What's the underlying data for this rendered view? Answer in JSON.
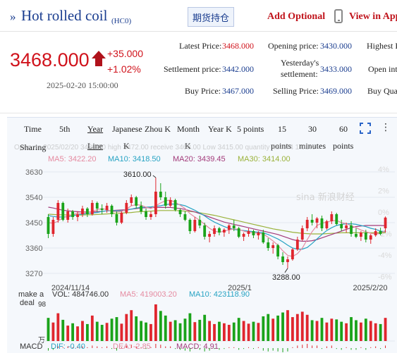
{
  "header": {
    "title_prefix": "»",
    "title": "Hot rolled coil",
    "code": "(HC0)",
    "futures_button": "期货持仓",
    "add_optional": "Add Optional",
    "view_app": "View in App"
  },
  "quote": {
    "price": "3468.000",
    "change": "+35.000",
    "change_pct": "+1.02%",
    "datetime": "2025-02-20 15:00:00",
    "fields": {
      "latest_price_label": "Latest Price:",
      "latest_price": "3468.000",
      "opening_price_label": "Opening price:",
      "opening_price": "3430.000",
      "highest_label": "Highest P",
      "settlement_label": "Settlement price:",
      "settlement": "3442.000",
      "yesterday_label_1": "Yesterday's",
      "yesterday_label_2": "settlement:",
      "yesterday": "3433.000",
      "open_interest_label": "Open inte",
      "buy_price_label": "Buy Price:",
      "buy_price": "3467.000",
      "selling_price_label": "Selling Price:",
      "selling_price": "3469.000",
      "buy_qty_label": "Buy Qua"
    }
  },
  "chart_tabs": {
    "time": "Time",
    "fifth": "5th",
    "year": "Year",
    "year_line": "Line",
    "japanese": "Japanese",
    "k_small": "K",
    "zhou_k": "Zhou K",
    "month": "Month",
    "month_k": "K",
    "year_k": "Year K",
    "five_points": "5 points",
    "fifteen": "15",
    "thirty": "30",
    "sixty": "60",
    "points": "points",
    "minutes": "minutes",
    "points2": "points"
  },
  "chart_info": {
    "sharing": "Sharing",
    "summary": "Open on 2025/02/20  3430.00  high 3472.00  receive 3468.00  Low 3415.00  quantity 484.74  1.01%",
    "ma5": "MA5: 3422.20",
    "ma10": "MA10: 3418.50",
    "ma20": "MA20: 3439.45",
    "ma30": "MA30: 3414.00",
    "peak": "3610.00",
    "trough": "3288.00",
    "watermark": "sina 新浪财经",
    "vol_prefix_1": "make a",
    "vol_prefix_2": "deal",
    "vol_unit": "万",
    "vol": "VOL: 484746.00",
    "vol_ma5": "MA5: 419003.20",
    "vol_ma10": "MA10: 423118.90",
    "macd": "MACD",
    "dif": "DIF: -0.40",
    "dea": "DEA: -2.85",
    "macd_val": "MACD: 4.91",
    "colors": {
      "up": "#e0262e",
      "down": "#1aa31a",
      "ma5": "#e58aa0",
      "ma10": "#27a3c3",
      "ma20": "#a23a7a",
      "ma30": "#9ab23a"
    }
  },
  "chart_data": {
    "type": "candlestick",
    "y_ticks": [
      "3630",
      "3540",
      "3450",
      "3360",
      "3270"
    ],
    "pct_ticks": [
      "4%",
      "2%",
      "0%",
      "-2%",
      "-4%",
      "-6%"
    ],
    "x_ticks": [
      "2024/11/14",
      "2025/1",
      "2025/2/20"
    ],
    "ylim": [
      3250,
      3640
    ],
    "vol_tick": "98",
    "candles": [
      [
        3470,
        3480,
        3395,
        3410
      ],
      [
        3410,
        3470,
        3400,
        3460
      ],
      [
        3460,
        3530,
        3450,
        3520
      ],
      [
        3520,
        3525,
        3455,
        3460
      ],
      [
        3460,
        3500,
        3450,
        3490
      ],
      [
        3490,
        3495,
        3460,
        3470
      ],
      [
        3470,
        3490,
        3455,
        3480
      ],
      [
        3480,
        3510,
        3470,
        3500
      ],
      [
        3500,
        3505,
        3470,
        3480
      ],
      [
        3480,
        3530,
        3475,
        3520
      ],
      [
        3520,
        3525,
        3490,
        3500
      ],
      [
        3500,
        3515,
        3480,
        3495
      ],
      [
        3495,
        3520,
        3485,
        3510
      ],
      [
        3510,
        3515,
        3470,
        3480
      ],
      [
        3480,
        3490,
        3440,
        3450
      ],
      [
        3450,
        3490,
        3445,
        3485
      ],
      [
        3485,
        3530,
        3480,
        3520
      ],
      [
        3520,
        3550,
        3510,
        3540
      ],
      [
        3540,
        3545,
        3500,
        3510
      ],
      [
        3510,
        3525,
        3480,
        3490
      ],
      [
        3490,
        3500,
        3460,
        3470
      ],
      [
        3470,
        3490,
        3460,
        3480
      ],
      [
        3480,
        3610,
        3470,
        3560
      ],
      [
        3560,
        3590,
        3530,
        3540
      ],
      [
        3540,
        3560,
        3500,
        3510
      ],
      [
        3510,
        3540,
        3505,
        3530
      ],
      [
        3530,
        3535,
        3490,
        3495
      ],
      [
        3495,
        3500,
        3470,
        3480
      ],
      [
        3480,
        3490,
        3455,
        3460
      ],
      [
        3460,
        3465,
        3410,
        3420
      ],
      [
        3420,
        3470,
        3415,
        3460
      ],
      [
        3460,
        3475,
        3430,
        3440
      ],
      [
        3440,
        3450,
        3390,
        3400
      ],
      [
        3400,
        3420,
        3380,
        3410
      ],
      [
        3410,
        3440,
        3400,
        3430
      ],
      [
        3430,
        3435,
        3405,
        3415
      ],
      [
        3415,
        3430,
        3400,
        3425
      ],
      [
        3425,
        3445,
        3410,
        3440
      ],
      [
        3440,
        3460,
        3420,
        3430
      ],
      [
        3430,
        3435,
        3395,
        3400
      ],
      [
        3400,
        3415,
        3385,
        3410
      ],
      [
        3410,
        3430,
        3400,
        3420
      ],
      [
        3420,
        3425,
        3395,
        3405
      ],
      [
        3405,
        3420,
        3390,
        3415
      ],
      [
        3415,
        3425,
        3375,
        3380
      ],
      [
        3380,
        3395,
        3350,
        3360
      ],
      [
        3360,
        3380,
        3340,
        3370
      ],
      [
        3370,
        3375,
        3320,
        3330
      ],
      [
        3330,
        3345,
        3300,
        3310
      ],
      [
        3310,
        3330,
        3288,
        3320
      ],
      [
        3320,
        3360,
        3315,
        3355
      ],
      [
        3355,
        3400,
        3350,
        3390
      ],
      [
        3390,
        3440,
        3385,
        3430
      ],
      [
        3430,
        3470,
        3420,
        3460
      ],
      [
        3460,
        3480,
        3440,
        3450
      ],
      [
        3450,
        3470,
        3430,
        3465
      ],
      [
        3465,
        3475,
        3420,
        3430
      ],
      [
        3430,
        3460,
        3425,
        3455
      ],
      [
        3455,
        3490,
        3445,
        3480
      ],
      [
        3480,
        3485,
        3440,
        3445
      ],
      [
        3445,
        3460,
        3420,
        3430
      ],
      [
        3430,
        3450,
        3415,
        3440
      ],
      [
        3440,
        3455,
        3400,
        3410
      ],
      [
        3410,
        3430,
        3395,
        3400
      ],
      [
        3400,
        3420,
        3385,
        3415
      ],
      [
        3415,
        3425,
        3380,
        3390
      ],
      [
        3390,
        3410,
        3375,
        3405
      ],
      [
        3405,
        3430,
        3400,
        3420
      ],
      [
        3420,
        3432,
        3405,
        3410
      ],
      [
        3430,
        3472,
        3415,
        3468
      ]
    ],
    "volumes": [
      60,
      48,
      72,
      55,
      40,
      46,
      38,
      52,
      44,
      66,
      50,
      42,
      47,
      58,
      62,
      45,
      70,
      80,
      64,
      52,
      48,
      44,
      95,
      78,
      66,
      50,
      54,
      46,
      58,
      72,
      49,
      55,
      68,
      52,
      44,
      50,
      46,
      42,
      48,
      60,
      52,
      45,
      50,
      47,
      64,
      70,
      58,
      66,
      74,
      80,
      62,
      70,
      76,
      68,
      54,
      52,
      60,
      48,
      58,
      56,
      50,
      46,
      62,
      54,
      48,
      58,
      52,
      46,
      44,
      60
    ],
    "ma5": [
      3450,
      3448,
      3455,
      3468,
      3472,
      3478,
      3484,
      3482,
      3486,
      3490,
      3496,
      3500,
      3496,
      3490,
      3488,
      3490,
      3498,
      3510,
      3514,
      3512,
      3505,
      3500,
      3510,
      3520,
      3528,
      3530,
      3522,
      3512,
      3500,
      3482,
      3470,
      3458,
      3444,
      3430,
      3420,
      3416,
      3420,
      3424,
      3428,
      3426,
      3420,
      3416,
      3414,
      3412,
      3410,
      3398,
      3385,
      3370,
      3350,
      3334,
      3330,
      3340,
      3360,
      3390,
      3418,
      3440,
      3448,
      3452,
      3456,
      3458,
      3450,
      3446,
      3440,
      3432,
      3424,
      3418,
      3412,
      3410,
      3412,
      3422
    ],
    "ma10": [
      3475,
      3472,
      3470,
      3470,
      3471,
      3474,
      3478,
      3480,
      3482,
      3484,
      3486,
      3490,
      3492,
      3492,
      3492,
      3492,
      3494,
      3498,
      3502,
      3504,
      3505,
      3506,
      3508,
      3510,
      3514,
      3516,
      3516,
      3514,
      3510,
      3502,
      3494,
      3484,
      3474,
      3462,
      3452,
      3444,
      3436,
      3430,
      3426,
      3424,
      3422,
      3420,
      3418,
      3416,
      3414,
      3408,
      3400,
      3392,
      3382,
      3370,
      3360,
      3356,
      3356,
      3362,
      3376,
      3392,
      3408,
      3422,
      3432,
      3440,
      3444,
      3446,
      3446,
      3444,
      3440,
      3436,
      3430,
      3426,
      3420,
      3418
    ],
    "ma20": [
      3505,
      3502,
      3498,
      3494,
      3492,
      3490,
      3489,
      3488,
      3488,
      3488,
      3489,
      3490,
      3492,
      3493,
      3494,
      3495,
      3496,
      3498,
      3500,
      3502,
      3503,
      3503,
      3504,
      3504,
      3504,
      3504,
      3502,
      3500,
      3497,
      3492,
      3488,
      3482,
      3476,
      3470,
      3464,
      3458,
      3452,
      3448,
      3444,
      3440,
      3436,
      3432,
      3428,
      3424,
      3420,
      3416,
      3412,
      3408,
      3402,
      3396,
      3390,
      3386,
      3384,
      3384,
      3386,
      3390,
      3396,
      3402,
      3408,
      3414,
      3420,
      3426,
      3432,
      3436,
      3438,
      3440,
      3440,
      3440,
      3440,
      3439
    ],
    "ma30": [
      3480,
      3479,
      3478,
      3478,
      3477,
      3477,
      3477,
      3477,
      3478,
      3478,
      3479,
      3480,
      3481,
      3482,
      3483,
      3484,
      3485,
      3486,
      3488,
      3489,
      3490,
      3491,
      3492,
      3493,
      3493,
      3493,
      3493,
      3492,
      3491,
      3490,
      3488,
      3485,
      3482,
      3479,
      3476,
      3472,
      3468,
      3464,
      3460,
      3456,
      3452,
      3448,
      3444,
      3440,
      3436,
      3432,
      3428,
      3425,
      3422,
      3419,
      3416,
      3414,
      3412,
      3411,
      3410,
      3410,
      3410,
      3411,
      3412,
      3413,
      3414,
      3414,
      3414,
      3414,
      3414,
      3414,
      3414,
      3414,
      3414,
      3414
    ],
    "macd_hist": [
      -3,
      -2,
      2,
      1,
      2,
      1,
      1,
      2,
      1,
      3,
      2,
      1,
      2,
      -1,
      -3,
      1,
      3,
      4,
      2,
      1,
      -1,
      1,
      5,
      4,
      2,
      2,
      -1,
      -2,
      -3,
      -4,
      -1,
      -2,
      -4,
      -3,
      -1,
      -2,
      -1,
      1,
      1,
      -2,
      -1,
      1,
      -1,
      1,
      -3,
      -4,
      -3,
      -4,
      -5,
      -4,
      1,
      3,
      4,
      5,
      3,
      3,
      -1,
      2,
      3,
      -1,
      -2,
      1,
      -2,
      -2,
      1,
      -2,
      1,
      2,
      -1,
      3
    ]
  }
}
